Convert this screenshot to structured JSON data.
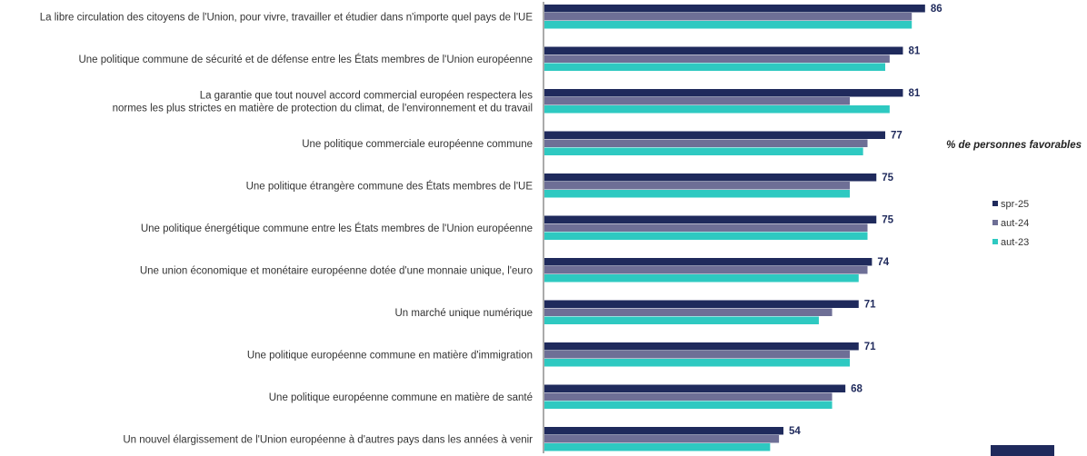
{
  "note": "% de personnes favorables",
  "colors": {
    "spr25": "#1f2a5c",
    "aut24": "#6e6f96",
    "aut23": "#2ec9c1",
    "axis": "#555555"
  },
  "chart_data": {
    "type": "bar",
    "orientation": "horizontal",
    "categories": [
      [
        "La libre circulation des citoyens de l'Union, pour vivre, travailler et étudier dans n'importe quel pays de l'UE"
      ],
      [
        "Une politique commune de sécurité et de défense entre les États membres de l'Union européenne"
      ],
      [
        "La garantie que tout nouvel accord commercial européen respectera les",
        "normes les plus strictes en matière de protection du climat, de l'environnement et du travail"
      ],
      [
        "Une politique commerciale européenne commune"
      ],
      [
        "Une politique étrangère commune des États membres de l'UE"
      ],
      [
        "Une politique énergétique commune entre les États membres de l'Union européenne"
      ],
      [
        "Une union économique et monétaire européenne dotée d'une monnaie unique, l'euro"
      ],
      [
        "Un marché unique numérique"
      ],
      [
        "Une politique européenne commune en matière d'immigration"
      ],
      [
        "Une politique européenne commune en matière de santé"
      ],
      [
        "Un nouvel élargissement de l'Union européenne à d'autres pays dans les années à venir"
      ]
    ],
    "series": [
      {
        "name": "spr-25",
        "values": [
          86,
          81,
          81,
          77,
          75,
          75,
          74,
          71,
          71,
          68,
          54
        ]
      },
      {
        "name": "aut-24",
        "values": [
          83,
          78,
          69,
          73,
          69,
          73,
          73,
          65,
          69,
          65,
          53
        ]
      },
      {
        "name": "aut-23",
        "values": [
          83,
          77,
          78,
          72,
          69,
          73,
          71,
          62,
          69,
          65,
          51
        ]
      }
    ],
    "labeled_series": "spr-25",
    "xlim": [
      0,
      100
    ],
    "grid": false,
    "legend_position": "right"
  }
}
